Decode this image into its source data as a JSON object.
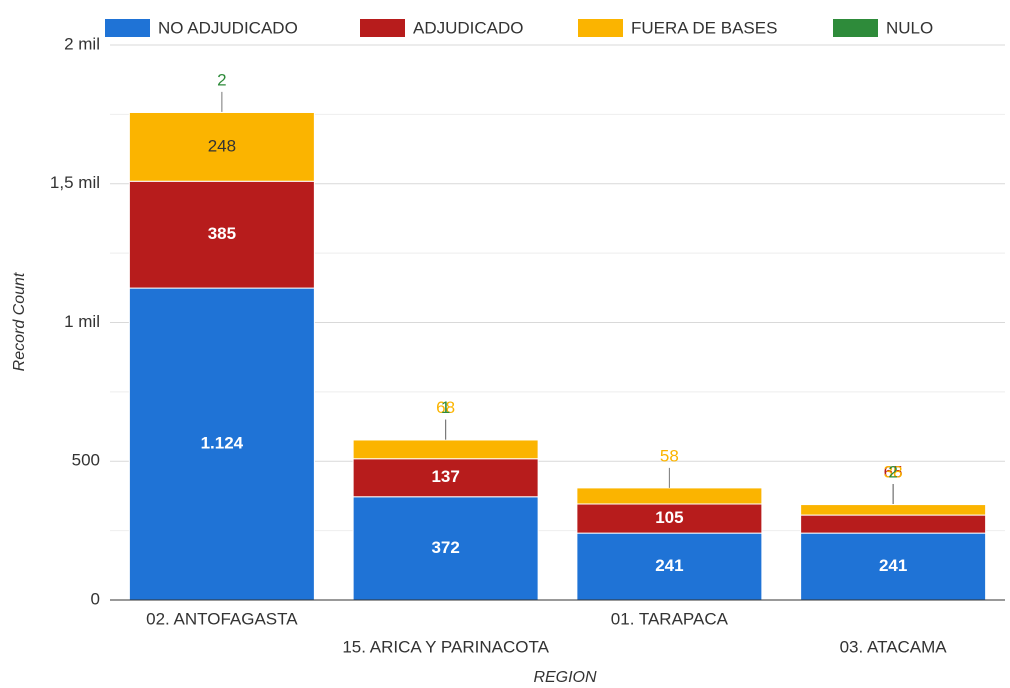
{
  "chart_data": {
    "type": "stacked_bar",
    "categories": [
      "02. ANTOFAGASTA",
      "15. ARICA Y PARINACOTA",
      "01. TARAPACA",
      "03. ATACAMA"
    ],
    "series": [
      {
        "name": "NO ADJUDICADO",
        "color": "#1f73d6",
        "values": [
          1124,
          372,
          241,
          241
        ],
        "value_labels": [
          "1.124",
          "372",
          "241",
          "241"
        ]
      },
      {
        "name": "ADJUDICADO",
        "color": "#b71c1c",
        "values": [
          385,
          137,
          105,
          65
        ]
      },
      {
        "name": "FUERA DE BASES",
        "color": "#fbb400",
        "values": [
          248,
          68,
          58,
          38
        ]
      },
      {
        "name": "NULO",
        "color": "#2e8b3a",
        "values": [
          2,
          1,
          null,
          2
        ]
      }
    ],
    "ylim": [
      0,
      2000
    ],
    "yticks": [
      0,
      500,
      {
        "value": 1000,
        "label": "1 mil"
      },
      {
        "value": 1500,
        "label": "1,5 mil"
      },
      {
        "value": 2000,
        "label": "2 mil"
      }
    ],
    "y_label": "Record Count",
    "x_label": "REGION",
    "grid": true,
    "legend": "top"
  }
}
